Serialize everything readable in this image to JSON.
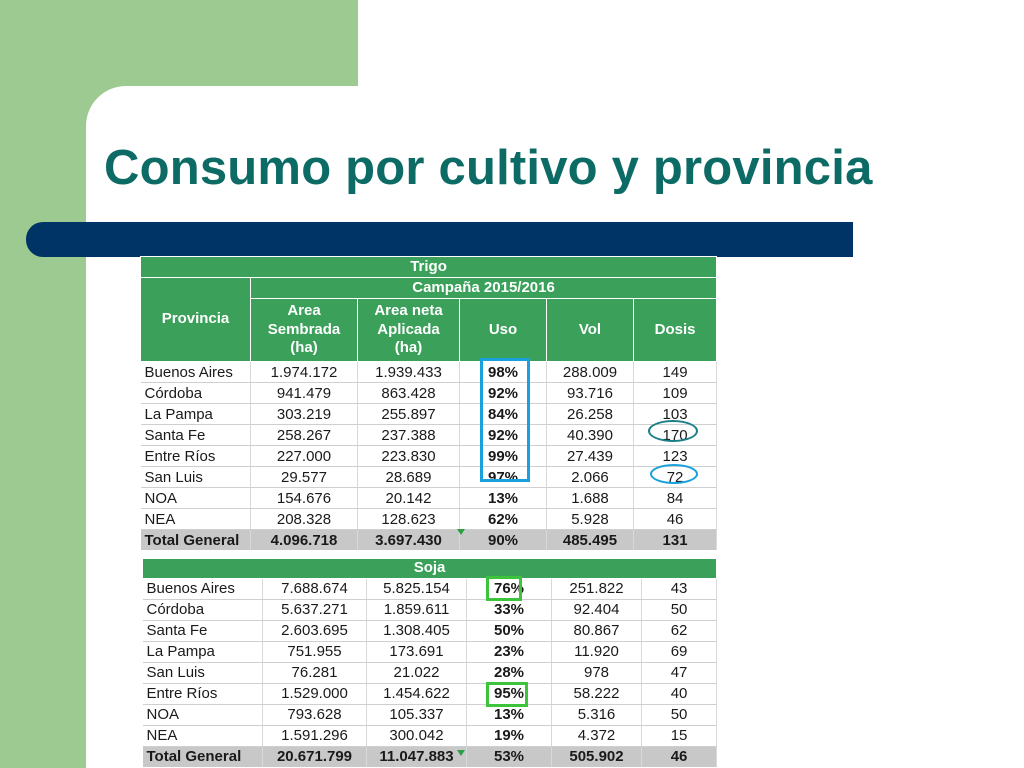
{
  "slide": {
    "title": "Consumo por cultivo y provincia"
  },
  "colors": {
    "green_side": "#9dca91",
    "title": "#0d6b66",
    "bar": "#003366",
    "table_header": "#3aa05a",
    "total_row": "#c8c8c8",
    "highlight_blue": "#1aa0dc",
    "highlight_teal": "#1a7f86",
    "highlight_green": "#3cc43c"
  },
  "trigo": {
    "title": "Trigo",
    "campaign": "Campaña 2015/2016",
    "headers": {
      "provincia": "Provincia",
      "area_sembrada": "Area\nSembrada\n(ha)",
      "area_neta": "Area neta\nAplicada\n(ha)",
      "uso": "Uso",
      "vol": "Vol",
      "dosis": "Dosis"
    },
    "rows": [
      [
        "Buenos Aires",
        "1.974.172",
        "1.939.433",
        "98%",
        "288.009",
        "149"
      ],
      [
        "Córdoba",
        "941.479",
        "863.428",
        "92%",
        "93.716",
        "109"
      ],
      [
        "La Pampa",
        "303.219",
        "255.897",
        "84%",
        "26.258",
        "103"
      ],
      [
        "Santa Fe",
        "258.267",
        "237.388",
        "92%",
        "40.390",
        "170"
      ],
      [
        "Entre Ríos",
        "227.000",
        "223.830",
        "99%",
        "27.439",
        "123"
      ],
      [
        "San Luis",
        "29.577",
        "28.689",
        "97%",
        "2.066",
        "72"
      ],
      [
        "NOA",
        "154.676",
        "20.142",
        "13%",
        "1.688",
        "84"
      ],
      [
        "NEA",
        "208.328",
        "128.623",
        "62%",
        "5.928",
        "46"
      ]
    ],
    "total": [
      "Total General",
      "4.096.718",
      "3.697.430",
      "90%",
      "485.495",
      "131"
    ]
  },
  "soja": {
    "title": "Soja",
    "rows": [
      [
        "Buenos Aires",
        "7.688.674",
        "5.825.154",
        "76%",
        "251.822",
        "43"
      ],
      [
        "Córdoba",
        "5.637.271",
        "1.859.611",
        "33%",
        "92.404",
        "50"
      ],
      [
        "Santa Fe",
        "2.603.695",
        "1.308.405",
        "50%",
        "80.867",
        "62"
      ],
      [
        "La Pampa",
        "751.955",
        "173.691",
        "23%",
        "11.920",
        "69"
      ],
      [
        "San Luis",
        "76.281",
        "21.022",
        "28%",
        "978",
        "47"
      ],
      [
        "Entre Ríos",
        "1.529.000",
        "1.454.622",
        "95%",
        "58.222",
        "40"
      ],
      [
        "NOA",
        "793.628",
        "105.337",
        "13%",
        "5.316",
        "50"
      ],
      [
        "NEA",
        "1.591.296",
        "300.042",
        "19%",
        "4.372",
        "15"
      ]
    ],
    "total": [
      "Total General",
      "20.671.799",
      "11.047.883",
      "53%",
      "505.902",
      "46"
    ]
  }
}
